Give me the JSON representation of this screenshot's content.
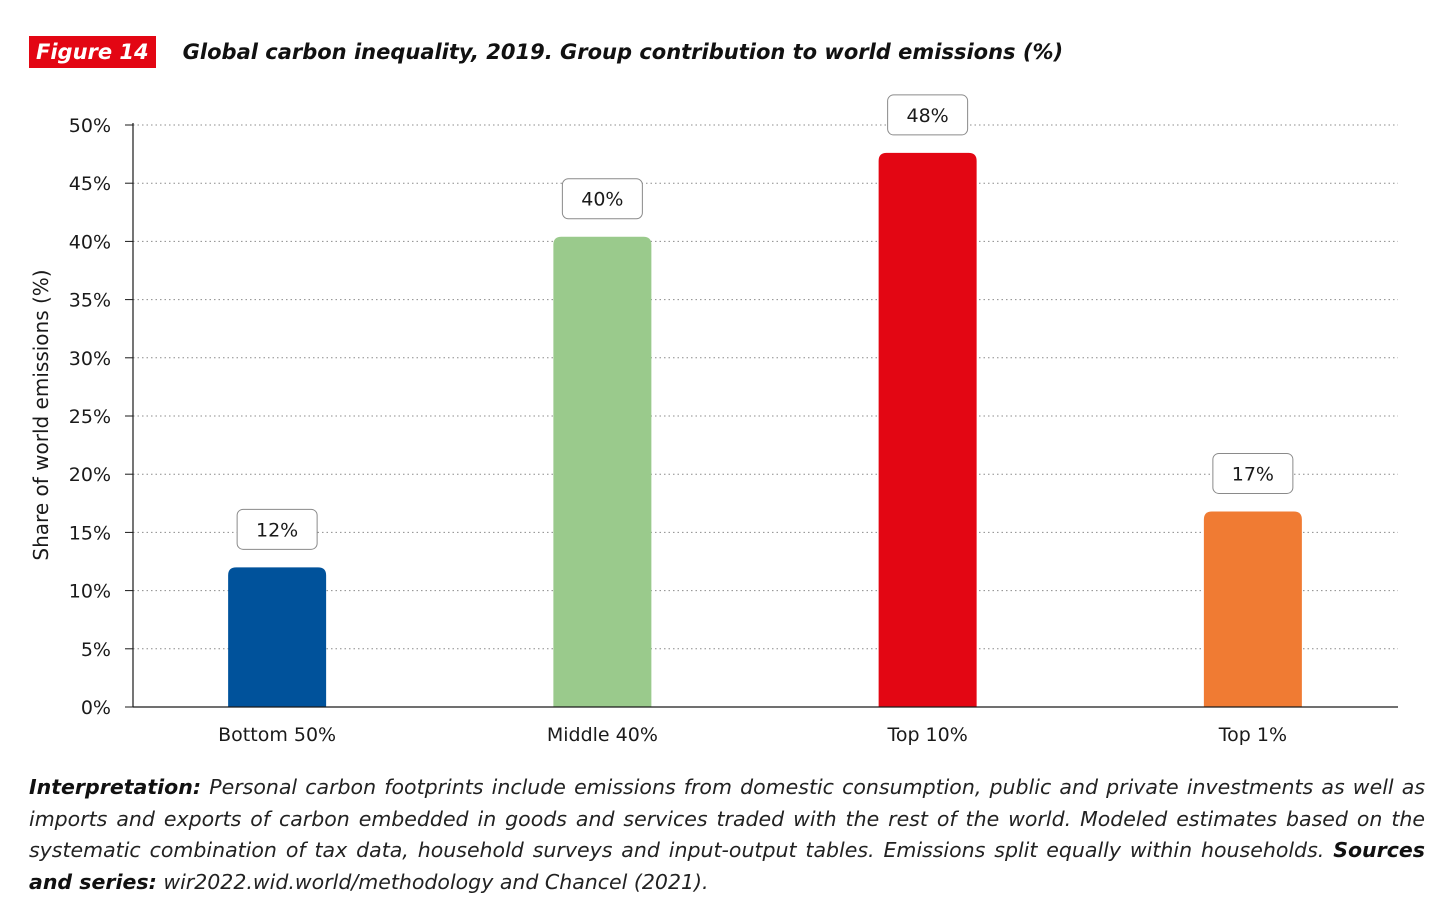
{
  "figure_label": "Figure 14",
  "chart_data": {
    "type": "bar",
    "title": "Global carbon inequality, 2019. Group contribution to world emissions (%)",
    "ylabel": "Share of world emissions (%)",
    "xlabel": "",
    "ylim": [
      0,
      50
    ],
    "yticks": [
      "0%",
      "5%",
      "10%",
      "15%",
      "20%",
      "25%",
      "30%",
      "35%",
      "40%",
      "45%",
      "50%"
    ],
    "categories": [
      "Bottom 50%",
      "Middle 40%",
      "Top 10%",
      "Top 1%"
    ],
    "values": [
      12,
      40.4,
      47.6,
      16.8
    ],
    "data_labels": [
      "12%",
      "40%",
      "48%",
      "17%"
    ],
    "colors": [
      "#00529b",
      "#9aca8c",
      "#e30613",
      "#f07b33"
    ],
    "grid": true,
    "grid_style": "dotted"
  },
  "footnote": {
    "interpretation_label": "Interpretation:",
    "interpretation_text": " Personal carbon footprints include emissions from domestic consumption, public and private investments as well as imports and exports of carbon embedded in goods and services traded with the rest of the world. Modeled estimates based on the systematic combination of tax data, household surveys and input-output tables. Emissions split equally within households. ",
    "sources_label": "Sources and series:",
    "sources_text": " wir2022.wid.world/methodology and Chancel (2021)."
  }
}
